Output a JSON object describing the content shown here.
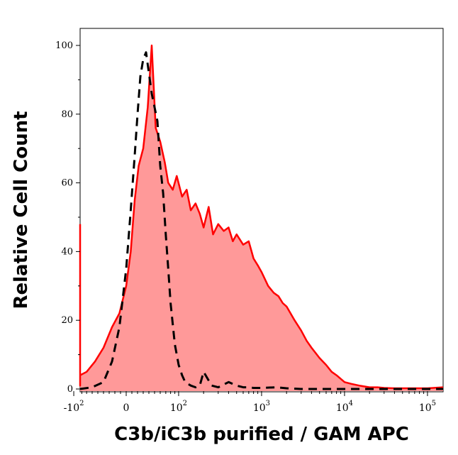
{
  "chart_data": {
    "type": "area",
    "xlabel": "C3b/iC3b purified / GAM APC",
    "ylabel": "Relative Cell Count",
    "x_scale": "biexponential",
    "xlim": [
      -200,
      200000
    ],
    "ylim": [
      0,
      105
    ],
    "y_ticks": [
      0,
      20,
      40,
      60,
      80,
      100
    ],
    "x_ticks": [
      {
        "value": -100,
        "base": "-10",
        "exp": "2"
      },
      {
        "value": 0,
        "base": "0",
        "exp": ""
      },
      {
        "value": 100,
        "base": "10",
        "exp": "2"
      },
      {
        "value": 1000,
        "base": "10",
        "exp": "3"
      },
      {
        "value": 10000,
        "base": "10",
        "exp": "4"
      },
      {
        "value": 100000,
        "base": "10",
        "exp": "5"
      }
    ],
    "grid": false,
    "series": [
      {
        "style": "filled-solid",
        "color": "#ff0000",
        "fill": "#ff9999",
        "x": [
          -200,
          -190,
          -175,
          -150,
          -125,
          -100,
          -85,
          -70,
          -55,
          -40,
          -25,
          -12,
          0,
          8,
          15,
          22,
          30,
          38,
          45,
          52,
          60,
          68,
          75,
          85,
          95,
          110,
          125,
          140,
          160,
          180,
          200,
          230,
          260,
          300,
          350,
          400,
          450,
          500,
          600,
          700,
          800,
          900,
          1000,
          1200,
          1400,
          1600,
          1800,
          2000,
          2500,
          3000,
          3500,
          4000,
          5000,
          6000,
          7000,
          8000,
          10000,
          12000,
          15000,
          20000,
          25000,
          30000,
          40000,
          60000,
          100000,
          200000
        ],
        "y": [
          48,
          5,
          2,
          1,
          3,
          2,
          4,
          5,
          8,
          12,
          18,
          22,
          30,
          40,
          55,
          65,
          70,
          82,
          100,
          76,
          72,
          66,
          60,
          58,
          62,
          56,
          58,
          52,
          54,
          51,
          47,
          53,
          45,
          48,
          46,
          47,
          43,
          45,
          42,
          43,
          38,
          36,
          34,
          30,
          28,
          27,
          25,
          24,
          20,
          17,
          14,
          12,
          9,
          7,
          5,
          4,
          2,
          1.5,
          1,
          0.5,
          0.5,
          0.3,
          0.2,
          0.2,
          0.2,
          0.5
        ]
      },
      {
        "style": "dashed",
        "color": "#000000",
        "x": [
          -200,
          -100,
          -60,
          -40,
          -25,
          -12,
          0,
          8,
          15,
          20,
          25,
          30,
          35,
          40,
          45,
          50,
          55,
          60,
          65,
          70,
          75,
          80,
          90,
          100,
          110,
          120,
          140,
          160,
          180,
          200,
          250,
          300,
          400,
          500,
          600,
          700,
          800,
          1000,
          1500,
          2000,
          3000,
          5000,
          10000,
          200000
        ],
        "y": [
          0,
          0,
          0.5,
          2,
          8,
          18,
          35,
          52,
          68,
          80,
          91,
          96,
          98,
          92,
          86,
          82,
          78,
          65,
          57,
          45,
          35,
          25,
          13,
          7,
          4,
          2,
          1,
          0.5,
          1,
          5,
          1,
          0.5,
          2,
          1,
          0.5,
          0.5,
          0.3,
          0.3,
          0.5,
          0.2,
          0,
          0,
          0,
          0
        ]
      }
    ]
  }
}
